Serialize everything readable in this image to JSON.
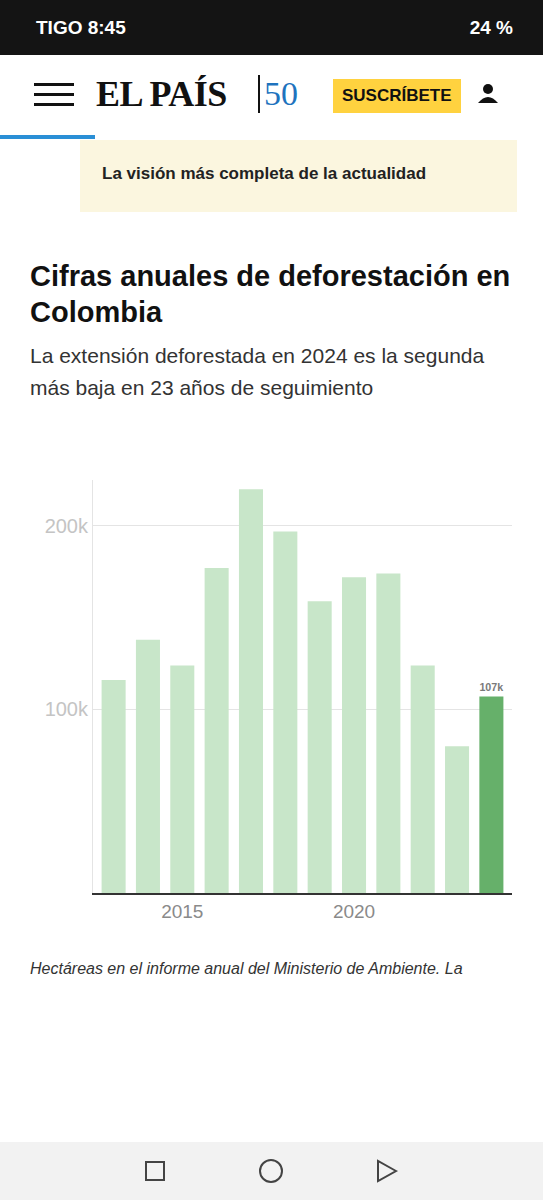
{
  "header": {
    "carrier": "TIGO",
    "time": "8:45",
    "battery": "24 %",
    "logo": "EL PAÍS",
    "anniversary": "50",
    "subscribe": "SUSCRÍBETE",
    "banner": "La visión más completa de la actualidad"
  },
  "chart_data": {
    "type": "bar",
    "title": "Cifras anuales de deforestación en Colombia",
    "subtitle": "La extensión deforestada en 2024 es la segunda más baja en 23 años de seguimiento",
    "caption": "Hectáreas en el informe anual del Ministerio de Ambiente. La",
    "categories": [
      null,
      null,
      "2015",
      null,
      null,
      null,
      null,
      "2020",
      null,
      null,
      null,
      null
    ],
    "values": [
      116000,
      138000,
      124000,
      177000,
      220000,
      197000,
      159000,
      172000,
      174000,
      124000,
      80000,
      107000
    ],
    "colors": [
      "#c8e6c9",
      "#c8e6c9",
      "#c8e6c9",
      "#c8e6c9",
      "#c8e6c9",
      "#c8e6c9",
      "#c8e6c9",
      "#c8e6c9",
      "#c8e6c9",
      "#c8e6c9",
      "#c8e6c9",
      "#66b06a"
    ],
    "data_labels": true,
    "value_labels": [
      null,
      null,
      null,
      null,
      null,
      null,
      null,
      null,
      null,
      null,
      null,
      "107k"
    ],
    "ylim": [
      0,
      225000
    ],
    "yticks": [
      {
        "value": 100000,
        "label": "100k"
      },
      {
        "value": 200000,
        "label": "200k"
      }
    ],
    "grid": true
  }
}
